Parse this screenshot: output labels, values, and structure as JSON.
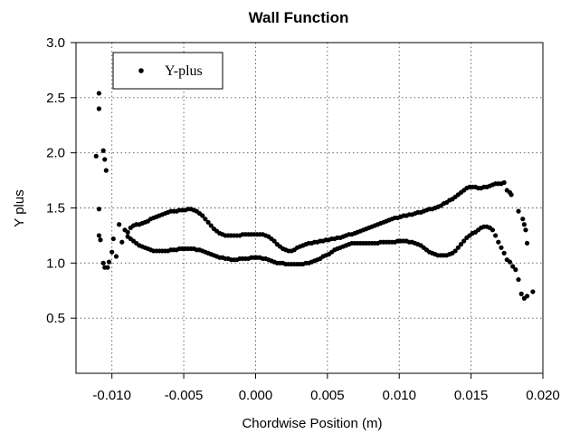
{
  "chart_data": {
    "type": "scatter",
    "title": "Wall Function",
    "xlabel": "Chordwise Position (m)",
    "ylabel": "Y plus",
    "xlim": [
      -0.0125,
      0.02
    ],
    "ylim": [
      0.0,
      3.0
    ],
    "x_ticks": [
      -0.01,
      -0.005,
      0.0,
      0.005,
      0.01,
      0.015,
      0.02
    ],
    "x_tick_labels": [
      "-0.010",
      "-0.005",
      "0.000",
      "0.005",
      "0.010",
      "0.015",
      "0.020"
    ],
    "y_ticks": [
      0.5,
      1.0,
      1.5,
      2.0,
      2.5,
      3.0
    ],
    "y_tick_labels": [
      "0.5",
      "1.0",
      "1.5",
      "2.0",
      "2.5",
      "3.0"
    ],
    "grid": true,
    "legend_position": "top-left",
    "marker_color": "#000000",
    "series": [
      {
        "name": "Y-plus",
        "points": [
          [
            -0.0109,
            2.54
          ],
          [
            -0.0109,
            2.4
          ],
          [
            -0.0111,
            1.97
          ],
          [
            -0.0106,
            2.02
          ],
          [
            -0.0105,
            1.94
          ],
          [
            -0.0104,
            1.84
          ],
          [
            -0.0109,
            1.49
          ],
          [
            -0.0109,
            1.25
          ],
          [
            -0.0108,
            1.21
          ],
          [
            -0.0106,
            1.0
          ],
          [
            -0.0105,
            0.96
          ],
          [
            -0.0103,
            0.96
          ],
          [
            -0.0102,
            1.01
          ],
          [
            -0.01,
            1.1
          ],
          [
            -0.0099,
            1.22
          ],
          [
            -0.0097,
            1.06
          ],
          [
            -0.0095,
            1.35
          ],
          [
            -0.0093,
            1.19
          ],
          [
            -0.0091,
            1.3
          ],
          [
            -0.0089,
            1.28
          ],
          [
            -0.0087,
            1.32
          ],
          [
            -0.0085,
            1.34
          ],
          [
            -0.0083,
            1.35
          ],
          [
            -0.0081,
            1.35
          ],
          [
            -0.0079,
            1.36
          ],
          [
            -0.0077,
            1.37
          ],
          [
            -0.0075,
            1.38
          ],
          [
            -0.0073,
            1.4
          ],
          [
            -0.0071,
            1.41
          ],
          [
            -0.0069,
            1.42
          ],
          [
            -0.0067,
            1.43
          ],
          [
            -0.0065,
            1.44
          ],
          [
            -0.0063,
            1.45
          ],
          [
            -0.0061,
            1.46
          ],
          [
            -0.0059,
            1.47
          ],
          [
            -0.0057,
            1.47
          ],
          [
            -0.0055,
            1.47
          ],
          [
            -0.0053,
            1.48
          ],
          [
            -0.0051,
            1.48
          ],
          [
            -0.0049,
            1.48
          ],
          [
            -0.0047,
            1.49
          ],
          [
            -0.0045,
            1.49
          ],
          [
            -0.0043,
            1.48
          ],
          [
            -0.0041,
            1.47
          ],
          [
            -0.0039,
            1.45
          ],
          [
            -0.0037,
            1.43
          ],
          [
            -0.0035,
            1.4
          ],
          [
            -0.0033,
            1.37
          ],
          [
            -0.0031,
            1.34
          ],
          [
            -0.0029,
            1.31
          ],
          [
            -0.0027,
            1.29
          ],
          [
            -0.0025,
            1.27
          ],
          [
            -0.0023,
            1.26
          ],
          [
            -0.0021,
            1.25
          ],
          [
            -0.0019,
            1.25
          ],
          [
            -0.0017,
            1.25
          ],
          [
            -0.0015,
            1.25
          ],
          [
            -0.0013,
            1.25
          ],
          [
            -0.0011,
            1.25
          ],
          [
            -0.0009,
            1.26
          ],
          [
            -0.0007,
            1.26
          ],
          [
            -0.0005,
            1.26
          ],
          [
            -0.0003,
            1.26
          ],
          [
            -0.0001,
            1.26
          ],
          [
            0.0001,
            1.26
          ],
          [
            0.0003,
            1.26
          ],
          [
            0.0005,
            1.26
          ],
          [
            0.0007,
            1.25
          ],
          [
            0.0009,
            1.24
          ],
          [
            0.0011,
            1.22
          ],
          [
            0.0013,
            1.2
          ],
          [
            0.0015,
            1.17
          ],
          [
            0.0017,
            1.15
          ],
          [
            0.0019,
            1.13
          ],
          [
            0.0021,
            1.12
          ],
          [
            0.0023,
            1.11
          ],
          [
            0.0025,
            1.11
          ],
          [
            0.0027,
            1.12
          ],
          [
            0.0029,
            1.14
          ],
          [
            0.0031,
            1.15
          ],
          [
            0.0033,
            1.16
          ],
          [
            0.0035,
            1.17
          ],
          [
            0.0037,
            1.18
          ],
          [
            0.0039,
            1.18
          ],
          [
            0.0041,
            1.19
          ],
          [
            0.0043,
            1.19
          ],
          [
            0.0045,
            1.2
          ],
          [
            0.0047,
            1.2
          ],
          [
            0.0049,
            1.21
          ],
          [
            0.0051,
            1.21
          ],
          [
            0.0053,
            1.22
          ],
          [
            0.0055,
            1.22
          ],
          [
            0.0057,
            1.23
          ],
          [
            0.0059,
            1.23
          ],
          [
            0.0061,
            1.24
          ],
          [
            0.0063,
            1.25
          ],
          [
            0.0065,
            1.26
          ],
          [
            0.0067,
            1.26
          ],
          [
            0.0069,
            1.27
          ],
          [
            0.0071,
            1.28
          ],
          [
            0.0073,
            1.29
          ],
          [
            0.0075,
            1.3
          ],
          [
            0.0077,
            1.31
          ],
          [
            0.0079,
            1.32
          ],
          [
            0.0081,
            1.33
          ],
          [
            0.0083,
            1.34
          ],
          [
            0.0085,
            1.35
          ],
          [
            0.0087,
            1.36
          ],
          [
            0.0089,
            1.37
          ],
          [
            0.0091,
            1.38
          ],
          [
            0.0093,
            1.39
          ],
          [
            0.0095,
            1.4
          ],
          [
            0.0097,
            1.41
          ],
          [
            0.0099,
            1.41
          ],
          [
            0.0101,
            1.42
          ],
          [
            0.0103,
            1.43
          ],
          [
            0.0105,
            1.43
          ],
          [
            0.0107,
            1.44
          ],
          [
            0.0109,
            1.44
          ],
          [
            0.0111,
            1.45
          ],
          [
            0.0113,
            1.46
          ],
          [
            0.0115,
            1.46
          ],
          [
            0.0117,
            1.47
          ],
          [
            0.0119,
            1.48
          ],
          [
            0.0121,
            1.49
          ],
          [
            0.0123,
            1.49
          ],
          [
            0.0125,
            1.5
          ],
          [
            0.0127,
            1.51
          ],
          [
            0.0129,
            1.52
          ],
          [
            0.0131,
            1.54
          ],
          [
            0.0133,
            1.55
          ],
          [
            0.0135,
            1.57
          ],
          [
            0.0137,
            1.58
          ],
          [
            0.0139,
            1.6
          ],
          [
            0.0141,
            1.62
          ],
          [
            0.0143,
            1.64
          ],
          [
            0.0145,
            1.66
          ],
          [
            0.0147,
            1.68
          ],
          [
            0.0149,
            1.69
          ],
          [
            0.0151,
            1.69
          ],
          [
            0.0153,
            1.69
          ],
          [
            0.0155,
            1.68
          ],
          [
            0.0157,
            1.68
          ],
          [
            0.0159,
            1.69
          ],
          [
            0.0161,
            1.69
          ],
          [
            0.0163,
            1.7
          ],
          [
            0.0165,
            1.71
          ],
          [
            0.0167,
            1.72
          ],
          [
            0.0169,
            1.72
          ],
          [
            0.0171,
            1.72
          ],
          [
            0.0173,
            1.73
          ],
          [
            0.0175,
            1.66
          ],
          [
            0.0177,
            1.64
          ],
          [
            0.0178,
            1.62
          ],
          [
            0.0183,
            1.47
          ],
          [
            0.0186,
            1.4
          ],
          [
            0.0187,
            1.35
          ],
          [
            0.0188,
            1.3
          ],
          [
            0.0189,
            1.18
          ],
          [
            -0.0089,
            1.24
          ],
          [
            -0.0087,
            1.22
          ],
          [
            -0.0085,
            1.2
          ],
          [
            -0.0083,
            1.18
          ],
          [
            -0.0081,
            1.16
          ],
          [
            -0.0079,
            1.15
          ],
          [
            -0.0077,
            1.14
          ],
          [
            -0.0075,
            1.13
          ],
          [
            -0.0073,
            1.12
          ],
          [
            -0.0071,
            1.11
          ],
          [
            -0.0069,
            1.11
          ],
          [
            -0.0067,
            1.11
          ],
          [
            -0.0065,
            1.11
          ],
          [
            -0.0063,
            1.11
          ],
          [
            -0.0061,
            1.11
          ],
          [
            -0.0059,
            1.12
          ],
          [
            -0.0057,
            1.12
          ],
          [
            -0.0055,
            1.12
          ],
          [
            -0.0053,
            1.13
          ],
          [
            -0.0051,
            1.13
          ],
          [
            -0.0049,
            1.13
          ],
          [
            -0.0047,
            1.13
          ],
          [
            -0.0045,
            1.13
          ],
          [
            -0.0043,
            1.13
          ],
          [
            -0.0041,
            1.12
          ],
          [
            -0.0039,
            1.12
          ],
          [
            -0.0037,
            1.11
          ],
          [
            -0.0035,
            1.1
          ],
          [
            -0.0033,
            1.09
          ],
          [
            -0.0031,
            1.08
          ],
          [
            -0.0029,
            1.07
          ],
          [
            -0.0027,
            1.06
          ],
          [
            -0.0025,
            1.05
          ],
          [
            -0.0023,
            1.05
          ],
          [
            -0.0021,
            1.04
          ],
          [
            -0.0019,
            1.04
          ],
          [
            -0.0017,
            1.03
          ],
          [
            -0.0015,
            1.03
          ],
          [
            -0.0013,
            1.03
          ],
          [
            -0.0011,
            1.04
          ],
          [
            -0.0009,
            1.04
          ],
          [
            -0.0007,
            1.04
          ],
          [
            -0.0005,
            1.04
          ],
          [
            -0.0003,
            1.05
          ],
          [
            -0.0001,
            1.05
          ],
          [
            0.0001,
            1.05
          ],
          [
            0.0003,
            1.05
          ],
          [
            0.0005,
            1.04
          ],
          [
            0.0007,
            1.04
          ],
          [
            0.0009,
            1.03
          ],
          [
            0.0011,
            1.02
          ],
          [
            0.0013,
            1.01
          ],
          [
            0.0015,
            1.0
          ],
          [
            0.0017,
            1.0
          ],
          [
            0.0019,
            1.0
          ],
          [
            0.0021,
            0.99
          ],
          [
            0.0023,
            0.99
          ],
          [
            0.0025,
            0.99
          ],
          [
            0.0027,
            0.99
          ],
          [
            0.0029,
            0.99
          ],
          [
            0.0031,
            0.99
          ],
          [
            0.0033,
            0.99
          ],
          [
            0.0035,
            1.0
          ],
          [
            0.0037,
            1.0
          ],
          [
            0.0039,
            1.01
          ],
          [
            0.0041,
            1.02
          ],
          [
            0.0043,
            1.03
          ],
          [
            0.0045,
            1.04
          ],
          [
            0.0047,
            1.06
          ],
          [
            0.0049,
            1.07
          ],
          [
            0.0051,
            1.08
          ],
          [
            0.0053,
            1.1
          ],
          [
            0.0055,
            1.12
          ],
          [
            0.0057,
            1.13
          ],
          [
            0.0059,
            1.14
          ],
          [
            0.0061,
            1.15
          ],
          [
            0.0063,
            1.16
          ],
          [
            0.0065,
            1.17
          ],
          [
            0.0067,
            1.18
          ],
          [
            0.0069,
            1.18
          ],
          [
            0.0071,
            1.18
          ],
          [
            0.0073,
            1.18
          ],
          [
            0.0075,
            1.18
          ],
          [
            0.0077,
            1.18
          ],
          [
            0.0079,
            1.18
          ],
          [
            0.0081,
            1.18
          ],
          [
            0.0083,
            1.18
          ],
          [
            0.0085,
            1.18
          ],
          [
            0.0087,
            1.19
          ],
          [
            0.0089,
            1.19
          ],
          [
            0.0091,
            1.19
          ],
          [
            0.0093,
            1.19
          ],
          [
            0.0095,
            1.19
          ],
          [
            0.0097,
            1.19
          ],
          [
            0.0099,
            1.2
          ],
          [
            0.0101,
            1.2
          ],
          [
            0.0103,
            1.2
          ],
          [
            0.0105,
            1.2
          ],
          [
            0.0107,
            1.19
          ],
          [
            0.0109,
            1.19
          ],
          [
            0.0111,
            1.18
          ],
          [
            0.0113,
            1.17
          ],
          [
            0.0115,
            1.16
          ],
          [
            0.0117,
            1.14
          ],
          [
            0.0119,
            1.12
          ],
          [
            0.0121,
            1.1
          ],
          [
            0.0123,
            1.09
          ],
          [
            0.0125,
            1.08
          ],
          [
            0.0127,
            1.07
          ],
          [
            0.0129,
            1.07
          ],
          [
            0.0131,
            1.07
          ],
          [
            0.0133,
            1.07
          ],
          [
            0.0135,
            1.08
          ],
          [
            0.0137,
            1.09
          ],
          [
            0.0139,
            1.11
          ],
          [
            0.0141,
            1.14
          ],
          [
            0.0143,
            1.17
          ],
          [
            0.0145,
            1.2
          ],
          [
            0.0147,
            1.23
          ],
          [
            0.0149,
            1.25
          ],
          [
            0.0151,
            1.27
          ],
          [
            0.0153,
            1.28
          ],
          [
            0.0155,
            1.3
          ],
          [
            0.0157,
            1.32
          ],
          [
            0.0159,
            1.33
          ],
          [
            0.0161,
            1.33
          ],
          [
            0.0163,
            1.32
          ],
          [
            0.0165,
            1.3
          ],
          [
            0.0167,
            1.25
          ],
          [
            0.0169,
            1.19
          ],
          [
            0.0171,
            1.14
          ],
          [
            0.0173,
            1.09
          ],
          [
            0.0175,
            1.03
          ],
          [
            0.0177,
            1.01
          ],
          [
            0.0179,
            0.97
          ],
          [
            0.0181,
            0.94
          ],
          [
            0.0183,
            0.85
          ],
          [
            0.0185,
            0.72
          ],
          [
            0.0187,
            0.68
          ],
          [
            0.0189,
            0.7
          ],
          [
            0.0193,
            0.74
          ]
        ]
      }
    ]
  }
}
